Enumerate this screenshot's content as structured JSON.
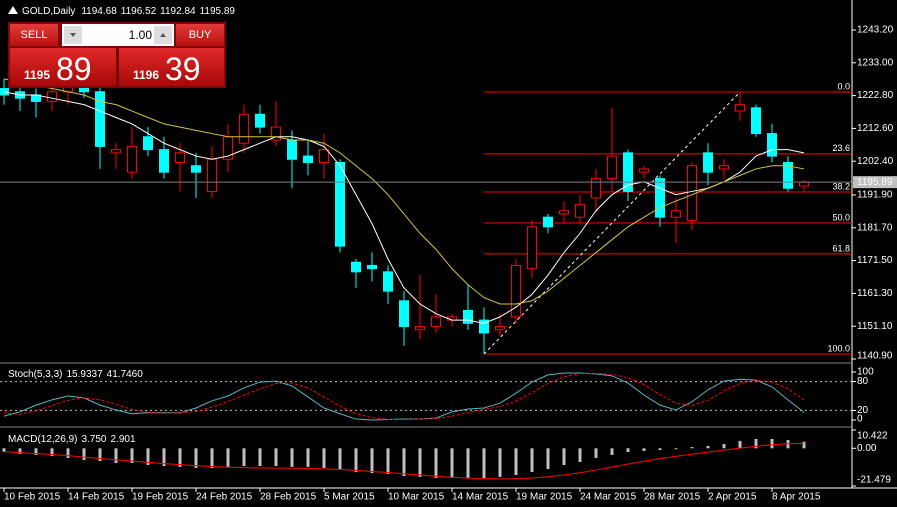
{
  "header": {
    "symbol": "GOLD,Daily"
  },
  "trade_panel": {
    "sell_label": "SELL",
    "buy_label": "BUY",
    "lot": "1.00",
    "sell_price": {
      "main": "1195",
      "pips": "89"
    },
    "buy_price": {
      "main": "1196",
      "pips": "39"
    }
  },
  "chart_data": [
    {
      "type": "candlestick",
      "categories": [
        "10 Feb 2015",
        null,
        null,
        null,
        "14 Feb 2015",
        null,
        null,
        null,
        "19 Feb 2015",
        null,
        null,
        null,
        "24 Feb 2015",
        null,
        null,
        null,
        "28 Feb 2015",
        null,
        null,
        null,
        "5 Mar 2015",
        null,
        null,
        null,
        "10 Mar 2015",
        null,
        null,
        null,
        "14 Mar 2015",
        null,
        null,
        null,
        "19 Mar 2015",
        null,
        null,
        null,
        "24 Mar 2015",
        null,
        null,
        null,
        "28 Mar 2015",
        null,
        null,
        null,
        "2 Apr 2015",
        null,
        null,
        null,
        "8 Apr 2015",
        null,
        null
      ],
      "open": [
        1225,
        1224,
        1223,
        1221,
        1224,
        1226,
        1224,
        1205,
        1199,
        1210,
        1206,
        1202,
        1201,
        1193,
        1203,
        1208,
        1217,
        1209,
        1209,
        1204,
        1202,
        1202,
        1171,
        1170,
        1168,
        1159,
        1150,
        1151,
        1153,
        1156,
        1153,
        1150,
        1154,
        1169,
        1185,
        1186,
        1185,
        1191,
        1197,
        1205,
        1199,
        1197,
        1185,
        1184,
        1205,
        1200,
        1218,
        1219,
        1211,
        1202,
        1194.68
      ],
      "high": [
        1228,
        1227,
        1225,
        1225,
        1230,
        1229,
        1226,
        1208,
        1213,
        1213,
        1210,
        1208,
        1205,
        1207,
        1214,
        1220,
        1220,
        1221,
        1212,
        1209,
        1211,
        1203,
        1172,
        1174,
        1170,
        1162,
        1167,
        1161,
        1155,
        1164,
        1157,
        1155,
        1172,
        1184,
        1186,
        1190,
        1192,
        1200,
        1219,
        1206,
        1201,
        1198,
        1191,
        1202,
        1208,
        1203,
        1224,
        1220,
        1214,
        1204,
        1196.52
      ],
      "low": [
        1220,
        1218,
        1216,
        1218,
        1220,
        1222,
        1200,
        1200,
        1197,
        1204,
        1197,
        1193,
        1191,
        1191,
        1199,
        1205,
        1211,
        1207,
        1194,
        1198,
        1197,
        1174,
        1163,
        1165,
        1158,
        1145,
        1147,
        1149,
        1151,
        1150,
        1142.5,
        1148,
        1152,
        1166,
        1180,
        1183,
        1183,
        1187,
        1193,
        1190,
        1197,
        1182,
        1177,
        1181,
        1195,
        1197,
        1215,
        1210,
        1202,
        1193,
        1192.84
      ],
      "close": [
        1223,
        1222,
        1221,
        1224,
        1226,
        1224,
        1207,
        1206,
        1207,
        1206,
        1199,
        1205,
        1199,
        1203,
        1210,
        1217,
        1213,
        1213,
        1203,
        1202,
        1206,
        1176,
        1168,
        1169,
        1162,
        1151,
        1151,
        1154,
        1154,
        1152,
        1149,
        1151,
        1170,
        1182,
        1182,
        1187,
        1189,
        1197,
        1204,
        1193,
        1200,
        1185,
        1187,
        1201,
        1199,
        1201,
        1220,
        1211,
        1204,
        1194,
        1195.89
      ],
      "bull_color": "#ff0000",
      "bear_color": "#00ffff",
      "overlays": [
        {
          "color": "#ffffff",
          "values": [
            1224,
            1223,
            1223,
            1222,
            1221,
            1220,
            1218,
            1216,
            1214,
            1211,
            1208,
            1206,
            1204,
            1203,
            1204,
            1206,
            1208,
            1210,
            1210,
            1209,
            1207,
            1201,
            1192,
            1183,
            1172,
            1163,
            1158,
            1155,
            1153,
            1153,
            1152,
            1154,
            1157,
            1161,
            1167,
            1174,
            1180,
            1187,
            1192,
            1195,
            1196,
            1194,
            1192,
            1193,
            1194,
            1196,
            1199,
            1204,
            1206,
            1206,
            1205
          ]
        },
        {
          "color": "#d8c341",
          "values": [
            1228,
            1227,
            1226,
            1225,
            1224,
            1223,
            1221,
            1220,
            1218,
            1216,
            1214,
            1213,
            1212,
            1211,
            1210,
            1210,
            1210,
            1210,
            1209,
            1209,
            1208,
            1205,
            1201,
            1197,
            1192,
            1186,
            1180,
            1175,
            1169,
            1164,
            1160,
            1158,
            1158,
            1159,
            1162,
            1166,
            1170,
            1174,
            1178,
            1182,
            1185,
            1188,
            1190,
            1192,
            1194,
            1196,
            1198,
            1200,
            1201,
            1201,
            1200
          ]
        }
      ],
      "fibonacci": {
        "color": "#ff0000",
        "start_bar": 30,
        "end_bar": 46,
        "levels": [
          {
            "label": "0.0",
            "price": 1223.92
          },
          {
            "label": "23.6",
            "price": 1204.7
          },
          {
            "label": "38.2",
            "price": 1192.81
          },
          {
            "label": "50.0",
            "price": 1183.2
          },
          {
            "label": "61.8",
            "price": 1173.58
          },
          {
            "label": "100.0",
            "price": 1142.47
          }
        ]
      },
      "price_line": true,
      "ylim": [
        1139.97,
        1246.93
      ],
      "yticks": [
        {
          "value": 1243.2,
          "label": "1243.20"
        },
        {
          "value": 1233,
          "label": "1233.00"
        },
        {
          "value": 1222.8,
          "label": "1222.80"
        },
        {
          "value": 1212.6,
          "label": "1212.60"
        },
        {
          "value": 1202.4,
          "label": "1202.40"
        },
        {
          "value": 1191.9,
          "label": "1191.90"
        },
        {
          "value": 1181.7,
          "label": "1181.70"
        },
        {
          "value": 1171.5,
          "label": "1171.50"
        },
        {
          "value": 1161.3,
          "label": "1161.30"
        },
        {
          "value": 1151.1,
          "label": "1151.10"
        },
        {
          "value": 1140.9,
          "label": "1140.90"
        }
      ]
    },
    {
      "type": "line",
      "title": "Stoch(5,3,3)",
      "readout": [
        "15.9337",
        "41.7460"
      ],
      "series": [
        {
          "color": "#5ab4c8",
          "values": [
            8,
            17,
            31,
            42,
            50,
            46,
            31,
            21,
            13,
            15,
            15,
            15,
            25,
            40,
            50,
            67,
            79,
            81,
            71,
            48,
            25,
            13,
            2,
            0,
            1,
            2,
            2,
            4,
            17,
            23,
            25,
            35,
            56,
            79,
            94,
            98,
            98,
            96,
            92,
            77,
            52,
            31,
            21,
            38,
            63,
            81,
            85,
            83,
            69,
            42,
            15.9337
          ]
        },
        {
          "color": "#ff0000",
          "dashed": true,
          "values": [
            15,
            12,
            19,
            30,
            41,
            46,
            42,
            33,
            22,
            16,
            14,
            15,
            18,
            27,
            38,
            52,
            65,
            76,
            77,
            67,
            48,
            29,
            13,
            5,
            1,
            1,
            2,
            3,
            8,
            15,
            22,
            28,
            39,
            57,
            76,
            90,
            97,
            97,
            95,
            88,
            74,
            53,
            35,
            30,
            41,
            61,
            76,
            83,
            79,
            65,
            41.746
          ]
        }
      ],
      "levels": [
        20,
        80
      ],
      "ylim": [
        -10.42,
        114.58
      ],
      "yticks": [
        0,
        20,
        80,
        100
      ]
    },
    {
      "type": "macd",
      "title": "MACD(12,26,9)",
      "readout": [
        "3.750",
        "2.901"
      ],
      "series": [
        {
          "color": "#c0c0c0",
          "style": "bar",
          "values": [
            -2,
            -3.2,
            -3.8,
            -4.4,
            -5.5,
            -6.7,
            -7.2,
            -8.4,
            -8.4,
            -9.5,
            -10.1,
            -10.6,
            -11.2,
            -11.2,
            -10.6,
            -10.1,
            -10.1,
            -10.1,
            -10.6,
            -10.6,
            -11.2,
            -12.4,
            -13.5,
            -14.1,
            -14.6,
            -15.8,
            -16.3,
            -16.9,
            -16.9,
            -16.9,
            -16.9,
            -16.3,
            -15.2,
            -13.5,
            -11.8,
            -9.5,
            -7.8,
            -5.5,
            -3.8,
            -2.1,
            -1.5,
            -1,
            -0.4,
            0.7,
            1.3,
            2.4,
            4.2,
            5.3,
            5.3,
            4.7,
            3.75
          ]
        },
        {
          "color": "#ff0000",
          "style": "line",
          "values": [
            -2,
            -2.5,
            -3,
            -3.5,
            -4.2,
            -5,
            -5.8,
            -6.6,
            -7.3,
            -8,
            -8.7,
            -9.3,
            -9.9,
            -10.4,
            -10.8,
            -11,
            -11.2,
            -11.3,
            -11.4,
            -11.5,
            -11.7,
            -12.1,
            -12.6,
            -13.2,
            -13.8,
            -14.5,
            -15.2,
            -15.9,
            -16.5,
            -17,
            -17.3,
            -17.4,
            -17.3,
            -16.9,
            -16.2,
            -15.2,
            -13.9,
            -12.4,
            -10.7,
            -9,
            -7.4,
            -5.9,
            -4.6,
            -3.3,
            -2.2,
            -1.1,
            0.1,
            1.1,
            2,
            2.6,
            2.901
          ]
        }
      ],
      "ylim": [
        -21.479,
        10.422
      ],
      "yticks": [
        -21.479,
        {
          "value": 0,
          "label": "0.00"
        },
        10.422
      ]
    }
  ]
}
